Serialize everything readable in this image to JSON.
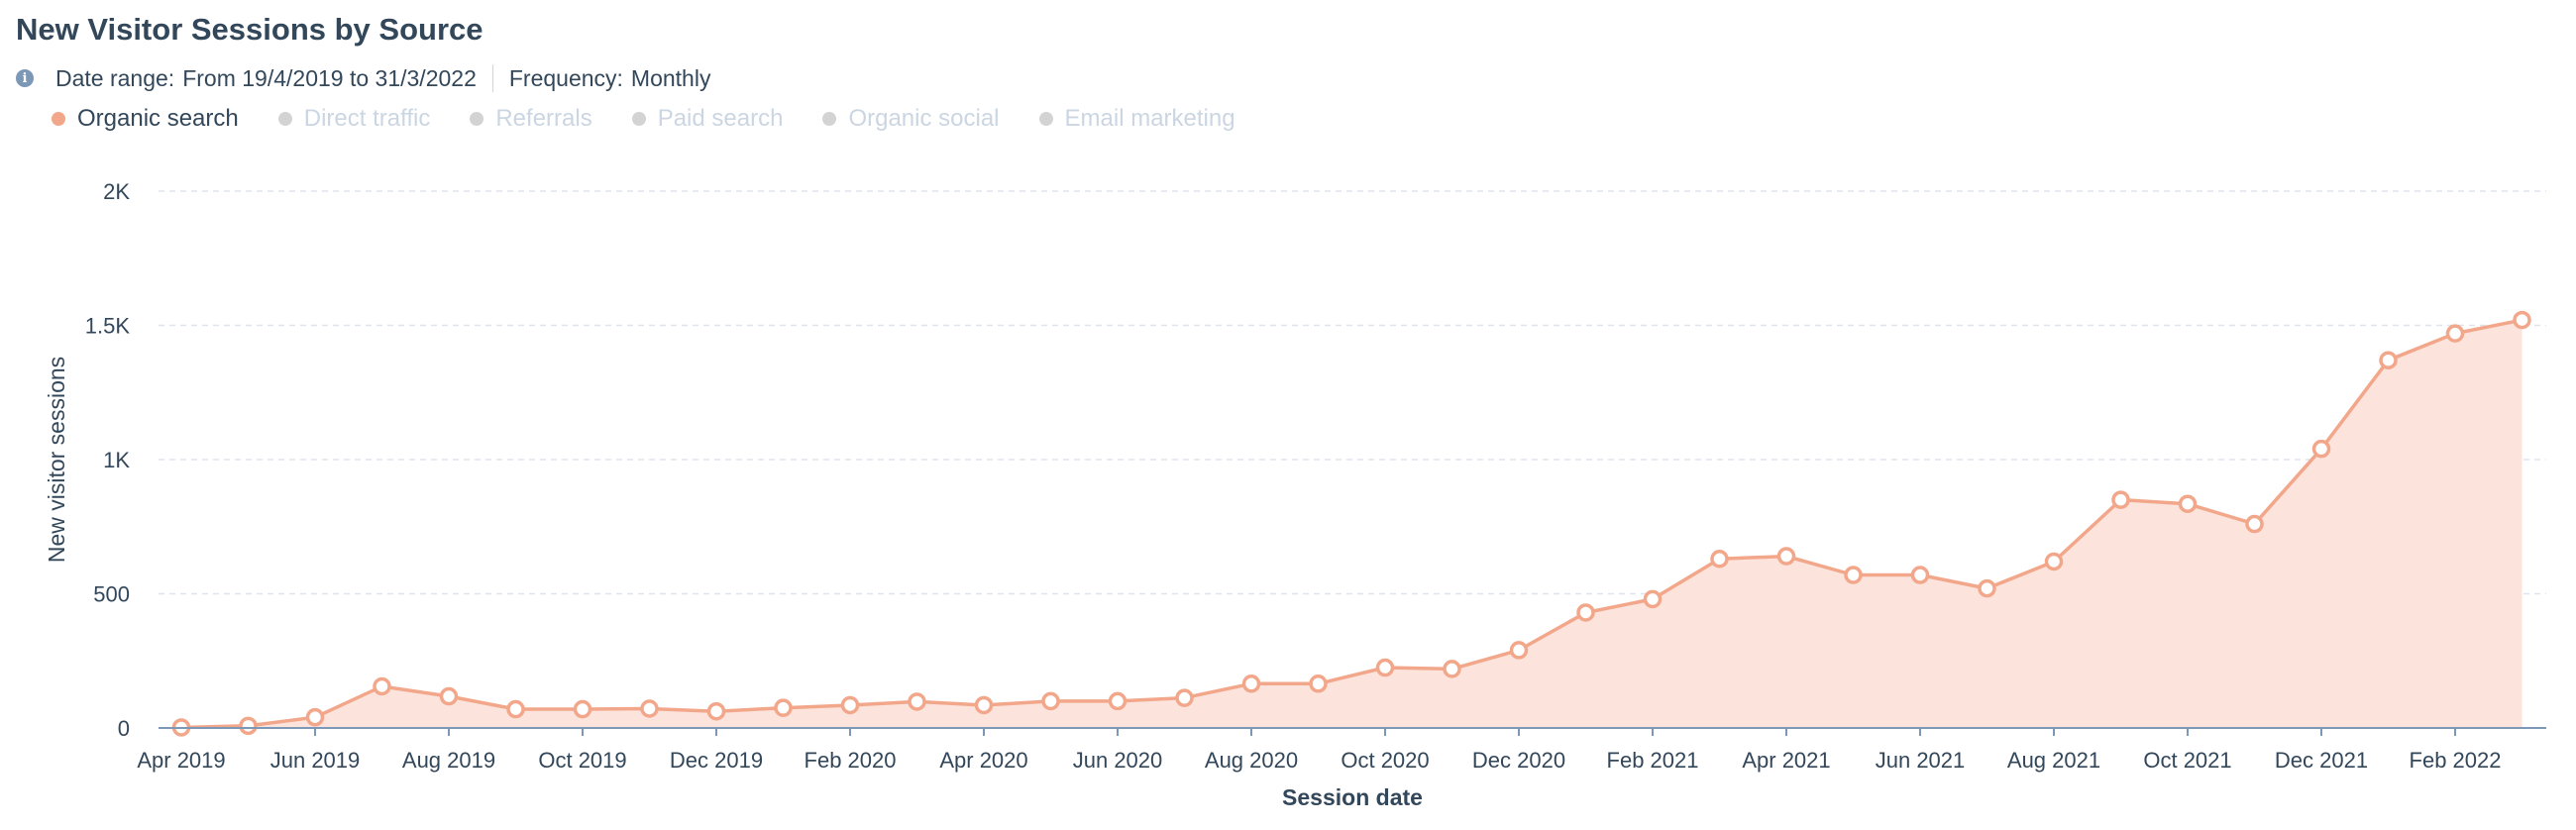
{
  "header": {
    "title": "New Visitor Sessions by Source",
    "date_range_label": "Date range:",
    "date_range_value": "From 19/4/2019 to 31/3/2022",
    "frequency_label": "Frequency:",
    "frequency_value": "Monthly",
    "info_icon": "info-icon"
  },
  "legend": {
    "items": [
      {
        "label": "Organic search",
        "active": true,
        "color": "#f2a78b"
      },
      {
        "label": "Direct traffic",
        "active": false,
        "color": "#d3d3d3"
      },
      {
        "label": "Referrals",
        "active": false,
        "color": "#d3d3d3"
      },
      {
        "label": "Paid search",
        "active": false,
        "color": "#d3d3d3"
      },
      {
        "label": "Organic social",
        "active": false,
        "color": "#d3d3d3"
      },
      {
        "label": "Email marketing",
        "active": false,
        "color": "#d3d3d3"
      }
    ]
  },
  "chart_data": {
    "type": "area",
    "xlabel": "Session date",
    "ylabel": "New visitor sessions",
    "ylim": [
      0,
      2000
    ],
    "y_ticks": [
      {
        "value": 0,
        "label": "0"
      },
      {
        "value": 500,
        "label": "500"
      },
      {
        "value": 1000,
        "label": "1K"
      },
      {
        "value": 1500,
        "label": "1.5K"
      },
      {
        "value": 2000,
        "label": "2K"
      }
    ],
    "x_tick_labels": [
      "Apr 2019",
      "Jun 2019",
      "Aug 2019",
      "Oct 2019",
      "Dec 2019",
      "Feb 2020",
      "Apr 2020",
      "Jun 2020",
      "Aug 2020",
      "Oct 2020",
      "Dec 2020",
      "Feb 2021",
      "Apr 2021",
      "Jun 2021",
      "Aug 2021",
      "Oct 2021",
      "Dec 2021",
      "Feb 2022"
    ],
    "grid": true,
    "line_color": "#f2a78b",
    "fill_color": "#fce3dc",
    "series": [
      {
        "name": "Organic search",
        "x": [
          "Apr 2019",
          "May 2019",
          "Jun 2019",
          "Jul 2019",
          "Aug 2019",
          "Sep 2019",
          "Oct 2019",
          "Nov 2019",
          "Dec 2019",
          "Jan 2020",
          "Feb 2020",
          "Mar 2020",
          "Apr 2020",
          "May 2020",
          "Jun 2020",
          "Jul 2020",
          "Aug 2020",
          "Sep 2020",
          "Oct 2020",
          "Nov 2020",
          "Dec 2020",
          "Jan 2021",
          "Feb 2021",
          "Mar 2021",
          "Apr 2021",
          "May 2021",
          "Jun 2021",
          "Jul 2021",
          "Aug 2021",
          "Sep 2021",
          "Oct 2021",
          "Nov 2021",
          "Dec 2021",
          "Jan 2022",
          "Feb 2022",
          "Mar 2022"
        ],
        "values": [
          2,
          8,
          40,
          155,
          118,
          70,
          70,
          72,
          62,
          75,
          85,
          98,
          85,
          100,
          100,
          112,
          165,
          165,
          225,
          220,
          290,
          430,
          480,
          630,
          640,
          570,
          570,
          520,
          620,
          850,
          835,
          760,
          1040,
          1370,
          1470,
          1520
        ]
      }
    ]
  }
}
